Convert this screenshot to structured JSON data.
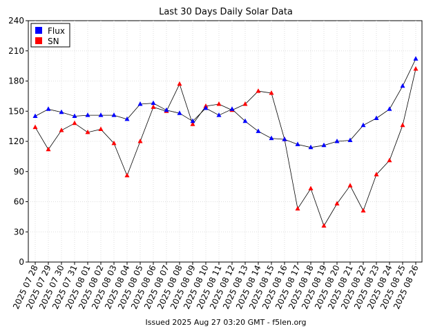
{
  "chart_data": {
    "type": "line",
    "title": "Last 30 Days Daily Solar Data",
    "footer": "Issued 2025 Aug 27 03:20 GMT - f5len.org",
    "categories": [
      "2025 07 28",
      "2025 07 29",
      "2025 07 30",
      "2025 07 31",
      "2025 08 01",
      "2025 08 02",
      "2025 08 03",
      "2025 08 04",
      "2025 08 05",
      "2025 08 06",
      "2025 08 07",
      "2025 08 08",
      "2025 08 09",
      "2025 08 10",
      "2025 08 11",
      "2025 08 12",
      "2025 08 13",
      "2025 08 14",
      "2025 08 15",
      "2025 08 16",
      "2025 08 17",
      "2025 08 18",
      "2025 08 19",
      "2025 08 20",
      "2025 08 21",
      "2025 08 22",
      "2025 08 23",
      "2025 08 24",
      "2025 08 25",
      "2025 08 26"
    ],
    "ylim": [
      0,
      240
    ],
    "yticks": [
      0,
      30,
      60,
      90,
      120,
      150,
      180,
      210,
      240
    ],
    "grid": true,
    "legend_position": "top-left",
    "series": [
      {
        "name": "Flux",
        "color": "#0000ff",
        "values": [
          145,
          152,
          149,
          145,
          146,
          146,
          146,
          142,
          157,
          158,
          151,
          148,
          140,
          153,
          146,
          152,
          140,
          130,
          123,
          122,
          117,
          114,
          116,
          120,
          121,
          136,
          143,
          152,
          175,
          202
        ]
      },
      {
        "name": "SN",
        "color": "#ff0000",
        "values": [
          134,
          112,
          131,
          138,
          129,
          132,
          118,
          86,
          120,
          154,
          150,
          177,
          137,
          155,
          157,
          151,
          157,
          170,
          168,
          122,
          53,
          73,
          36,
          58,
          76,
          51,
          87,
          101,
          136,
          192
        ]
      }
    ]
  }
}
